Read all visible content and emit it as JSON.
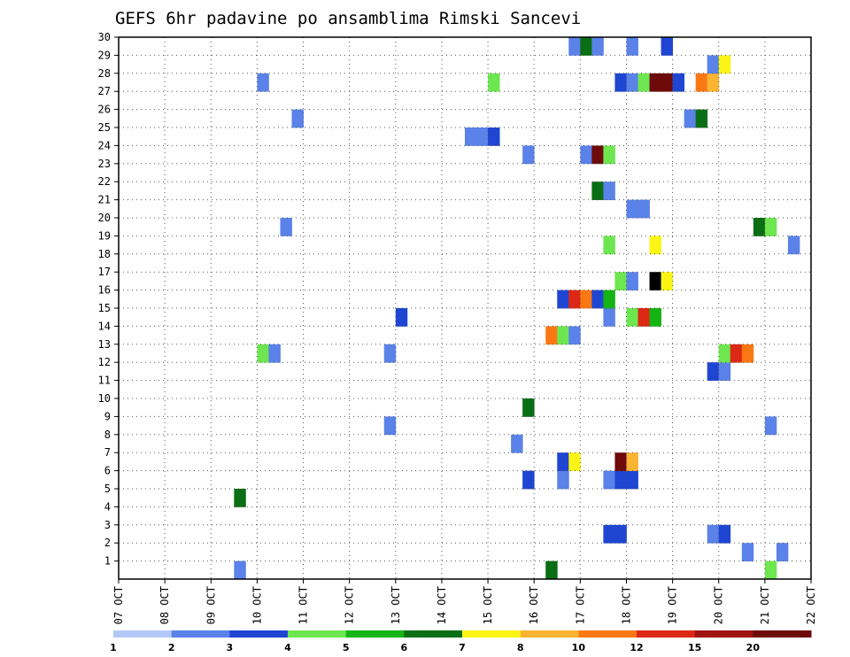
{
  "chart_data": {
    "type": "heatmap",
    "title": "GEFS 6hr padavine po ansamblima Rimski Sancevi",
    "xlabel": "",
    "ylabel": "",
    "x_tick_labels": [
      "07 OCT",
      "08 OCT",
      "09 OCT",
      "10 OCT",
      "11 OCT",
      "12 OCT",
      "13 OCT",
      "14 OCT",
      "15 OCT",
      "16 OCT",
      "17 OCT",
      "18 OCT",
      "19 OCT",
      "20 OCT",
      "21 OCT",
      "22 OCT"
    ],
    "x_range_days": [
      0,
      15
    ],
    "y_tick_labels": [
      "1",
      "2",
      "3",
      "4",
      "5",
      "6",
      "7",
      "8",
      "9",
      "10",
      "11",
      "12",
      "13",
      "14",
      "15",
      "16",
      "17",
      "18",
      "19",
      "20",
      "21",
      "22",
      "23",
      "24",
      "25",
      "26",
      "27",
      "28",
      "29",
      "30"
    ],
    "y_range": [
      0,
      30
    ],
    "grid": true,
    "colorbar": {
      "labels": [
        "1",
        "2",
        "3",
        "4",
        "5",
        "6",
        "7",
        "8",
        "10",
        "12",
        "15",
        "20"
      ],
      "colors": [
        "#b4c8f8",
        "#5a82e8",
        "#1e46d2",
        "#6ee650",
        "#14b414",
        "#0a6e14",
        "#faf514",
        "#fab432",
        "#fa7814",
        "#dc2814",
        "#a01414",
        "#6e0a0a"
      ]
    },
    "cell_width_days": 0.25,
    "cells": [
      [
        2.5,
        0,
        1
      ],
      [
        9.25,
        0,
        5
      ],
      [
        14.0,
        0,
        3
      ],
      [
        13.5,
        1,
        1
      ],
      [
        14.25,
        1,
        1
      ],
      [
        10.5,
        2,
        2
      ],
      [
        10.75,
        2,
        2
      ],
      [
        12.75,
        2,
        1
      ],
      [
        13.0,
        2,
        2
      ],
      [
        2.5,
        4,
        5
      ],
      [
        8.75,
        5,
        2
      ],
      [
        9.5,
        5,
        1
      ],
      [
        10.5,
        5,
        1
      ],
      [
        10.75,
        5,
        2
      ],
      [
        11.0,
        5,
        2
      ],
      [
        9.5,
        6,
        2
      ],
      [
        9.75,
        6,
        6
      ],
      [
        10.75,
        6,
        11
      ],
      [
        11.0,
        6,
        7
      ],
      [
        8.5,
        7,
        1
      ],
      [
        5.75,
        8,
        1
      ],
      [
        14.0,
        8,
        1
      ],
      [
        8.75,
        9,
        5
      ],
      [
        12.75,
        11,
        2
      ],
      [
        13.0,
        11,
        1
      ],
      [
        3.0,
        12,
        3
      ],
      [
        3.25,
        12,
        1
      ],
      [
        5.75,
        12,
        1
      ],
      [
        13.0,
        12,
        3
      ],
      [
        13.25,
        12,
        9
      ],
      [
        13.5,
        12,
        8
      ],
      [
        9.25,
        13,
        8
      ],
      [
        9.5,
        13,
        3
      ],
      [
        9.75,
        13,
        1
      ],
      [
        6.0,
        14,
        2
      ],
      [
        10.5,
        14,
        1
      ],
      [
        11.0,
        14,
        3
      ],
      [
        11.25,
        14,
        9
      ],
      [
        11.5,
        14,
        4
      ],
      [
        9.5,
        15,
        2
      ],
      [
        9.75,
        15,
        9
      ],
      [
        10.0,
        15,
        8
      ],
      [
        10.25,
        15,
        2
      ],
      [
        10.5,
        15,
        4
      ],
      [
        10.75,
        16,
        3
      ],
      [
        11.0,
        16,
        1
      ],
      [
        11.5,
        16,
        12
      ],
      [
        11.75,
        16,
        6
      ],
      [
        14.5,
        18,
        1
      ],
      [
        3.5,
        19,
        1
      ],
      [
        10.5,
        18,
        3
      ],
      [
        11.5,
        18,
        6
      ],
      [
        13.75,
        19,
        5
      ],
      [
        14.0,
        19,
        3
      ],
      [
        11.0,
        20,
        1
      ],
      [
        11.25,
        20,
        1
      ],
      [
        10.25,
        21,
        5
      ],
      [
        10.5,
        21,
        1
      ],
      [
        8.75,
        23,
        1
      ],
      [
        10.0,
        23,
        1
      ],
      [
        10.25,
        23,
        11
      ],
      [
        10.5,
        23,
        3
      ],
      [
        7.5,
        24,
        1
      ],
      [
        7.75,
        24,
        1
      ],
      [
        8.0,
        24,
        2
      ],
      [
        3.75,
        25,
        1
      ],
      [
        12.25,
        25,
        1
      ],
      [
        12.5,
        25,
        5
      ],
      [
        3.0,
        27,
        1
      ],
      [
        8.0,
        27,
        3
      ],
      [
        10.75,
        27,
        2
      ],
      [
        11.0,
        27,
        1
      ],
      [
        11.25,
        27,
        3
      ],
      [
        11.5,
        27,
        11
      ],
      [
        11.75,
        27,
        11
      ],
      [
        12.0,
        27,
        2
      ],
      [
        12.5,
        27,
        8
      ],
      [
        12.75,
        27,
        7
      ],
      [
        12.75,
        28,
        1
      ],
      [
        13.0,
        28,
        6
      ],
      [
        9.75,
        29,
        1
      ],
      [
        10.0,
        29,
        5
      ],
      [
        10.25,
        29,
        1
      ],
      [
        11.0,
        29,
        1
      ],
      [
        11.75,
        29,
        2
      ]
    ]
  }
}
